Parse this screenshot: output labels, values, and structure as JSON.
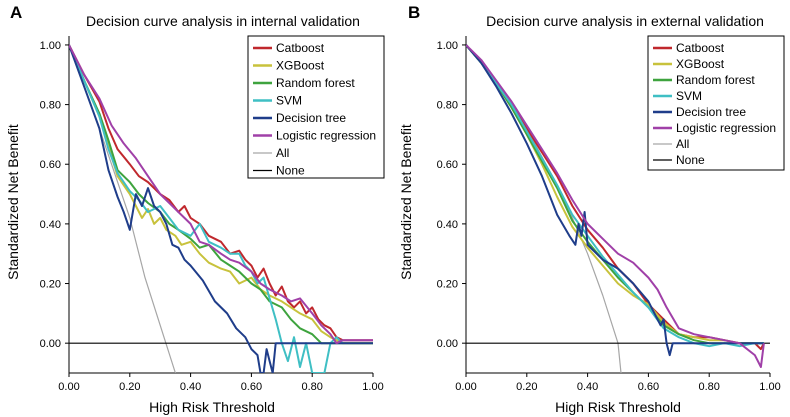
{
  "chart_data": [
    {
      "type": "line",
      "panel": "A",
      "title": "Decision curve analysis in internal validation",
      "xlabel": "High Risk Threshold",
      "ylabel": "Standardized Net Benefit",
      "xlim": [
        0,
        1
      ],
      "ylim": [
        -0.1,
        1.03
      ],
      "xticks": [
        0,
        0.2,
        0.4,
        0.6,
        0.8,
        1.0
      ],
      "xtick_labels": [
        "0.00",
        "0.20",
        "0.40",
        "0.60",
        "0.80",
        "1.00"
      ],
      "yticks": [
        0,
        0.2,
        0.4,
        0.6,
        0.8,
        1.0
      ],
      "ytick_labels": [
        "0.00",
        "0.20",
        "0.40",
        "0.60",
        "0.80",
        "1.00"
      ],
      "legend_position": "top-right",
      "series": [
        {
          "name": "Catboost",
          "color": "#c0282d",
          "x": [
            0,
            0.05,
            0.1,
            0.13,
            0.16,
            0.2,
            0.23,
            0.26,
            0.3,
            0.33,
            0.36,
            0.38,
            0.4,
            0.43,
            0.46,
            0.5,
            0.53,
            0.56,
            0.58,
            0.6,
            0.62,
            0.64,
            0.66,
            0.68,
            0.7,
            0.72,
            0.74,
            0.76,
            0.78,
            0.8,
            0.82,
            0.84,
            0.86,
            0.88,
            0.9,
            0.92,
            0.95,
            1.0
          ],
          "y": [
            1.0,
            0.9,
            0.81,
            0.72,
            0.65,
            0.6,
            0.56,
            0.54,
            0.5,
            0.48,
            0.44,
            0.46,
            0.42,
            0.4,
            0.36,
            0.34,
            0.3,
            0.31,
            0.28,
            0.26,
            0.22,
            0.25,
            0.2,
            0.16,
            0.19,
            0.14,
            0.12,
            0.14,
            0.1,
            0.12,
            0.08,
            0.06,
            0.05,
            0.02,
            0.01,
            0.01,
            0.01,
            0.01
          ]
        },
        {
          "name": "XGBoost",
          "color": "#c8c23c",
          "x": [
            0,
            0.05,
            0.1,
            0.13,
            0.16,
            0.2,
            0.22,
            0.24,
            0.26,
            0.28,
            0.3,
            0.32,
            0.35,
            0.37,
            0.4,
            0.43,
            0.46,
            0.5,
            0.53,
            0.56,
            0.6,
            0.63,
            0.66,
            0.7,
            0.73,
            0.76,
            0.8,
            0.83,
            0.86,
            0.9,
            0.95,
            1.0
          ],
          "y": [
            1.0,
            0.88,
            0.76,
            0.66,
            0.56,
            0.5,
            0.46,
            0.42,
            0.45,
            0.4,
            0.42,
            0.38,
            0.36,
            0.33,
            0.34,
            0.3,
            0.27,
            0.25,
            0.24,
            0.2,
            0.22,
            0.18,
            0.16,
            0.14,
            0.12,
            0.1,
            0.08,
            0.04,
            0.02,
            0.0,
            0.0,
            0.0
          ]
        },
        {
          "name": "Random forest",
          "color": "#3ea33e",
          "x": [
            0,
            0.05,
            0.1,
            0.13,
            0.16,
            0.2,
            0.23,
            0.26,
            0.3,
            0.33,
            0.36,
            0.4,
            0.43,
            0.46,
            0.5,
            0.53,
            0.56,
            0.6,
            0.63,
            0.66,
            0.7,
            0.73,
            0.76,
            0.8,
            0.83,
            0.86,
            0.9,
            0.95,
            1.0
          ],
          "y": [
            1.0,
            0.88,
            0.77,
            0.68,
            0.58,
            0.54,
            0.5,
            0.47,
            0.44,
            0.4,
            0.38,
            0.35,
            0.32,
            0.33,
            0.28,
            0.26,
            0.24,
            0.2,
            0.18,
            0.14,
            0.12,
            0.08,
            0.05,
            0.03,
            0.0,
            0.0,
            0.0,
            0.0,
            0.0
          ]
        },
        {
          "name": "SVM",
          "color": "#3fbfc4",
          "x": [
            0,
            0.05,
            0.1,
            0.13,
            0.16,
            0.2,
            0.23,
            0.26,
            0.3,
            0.33,
            0.36,
            0.4,
            0.43,
            0.46,
            0.5,
            0.53,
            0.56,
            0.58,
            0.6,
            0.62,
            0.64,
            0.66,
            0.68,
            0.7,
            0.72,
            0.74,
            0.76,
            0.78,
            0.8,
            0.82,
            0.84,
            0.86,
            0.88,
            0.9
          ],
          "y": [
            1.0,
            0.88,
            0.76,
            0.65,
            0.57,
            0.51,
            0.48,
            0.44,
            0.46,
            0.42,
            0.38,
            0.36,
            0.4,
            0.34,
            0.32,
            0.3,
            0.3,
            0.26,
            0.24,
            0.2,
            0.22,
            0.15,
            0.08,
            0.0,
            -0.06,
            0.02,
            -0.08,
            0.0,
            -0.1,
            -0.1,
            -0.1,
            0.0,
            0.02,
            0.0
          ]
        },
        {
          "name": "Decision tree",
          "color": "#1f3d8a",
          "x": [
            0,
            0.05,
            0.1,
            0.13,
            0.16,
            0.18,
            0.2,
            0.22,
            0.24,
            0.26,
            0.28,
            0.3,
            0.32,
            0.34,
            0.36,
            0.38,
            0.4,
            0.44,
            0.48,
            0.52,
            0.55,
            0.58,
            0.6,
            0.62,
            0.63,
            0.64,
            0.65,
            0.66,
            0.67,
            0.68,
            0.7,
            0.8,
            0.9,
            1.0
          ],
          "y": [
            1.0,
            0.86,
            0.72,
            0.58,
            0.49,
            0.44,
            0.38,
            0.5,
            0.46,
            0.52,
            0.46,
            0.44,
            0.4,
            0.33,
            0.32,
            0.28,
            0.26,
            0.21,
            0.14,
            0.1,
            0.05,
            0.02,
            -0.02,
            -0.04,
            -0.1,
            -0.1,
            -0.02,
            -0.06,
            -0.1,
            0.0,
            0.0,
            0.0,
            0.0,
            0.0
          ]
        },
        {
          "name": "Logistic regression",
          "color": "#a040a8",
          "x": [
            0,
            0.05,
            0.1,
            0.14,
            0.18,
            0.22,
            0.26,
            0.3,
            0.33,
            0.36,
            0.4,
            0.43,
            0.46,
            0.5,
            0.53,
            0.56,
            0.6,
            0.63,
            0.66,
            0.7,
            0.73,
            0.76,
            0.8,
            0.83,
            0.86,
            0.88,
            0.9,
            0.95,
            1.0
          ],
          "y": [
            1.0,
            0.9,
            0.82,
            0.73,
            0.67,
            0.62,
            0.56,
            0.5,
            0.47,
            0.44,
            0.4,
            0.34,
            0.33,
            0.3,
            0.28,
            0.27,
            0.24,
            0.2,
            0.18,
            0.16,
            0.14,
            0.15,
            0.1,
            0.06,
            0.03,
            0.0,
            0.01,
            0.01,
            0.01
          ]
        },
        {
          "name": "All",
          "color": "#a6a6a6",
          "x": [
            0,
            0.05,
            0.1,
            0.15,
            0.2,
            0.25,
            0.3,
            0.35
          ],
          "y": [
            1.0,
            0.86,
            0.72,
            0.57,
            0.42,
            0.22,
            0.06,
            -0.1
          ]
        },
        {
          "name": "None",
          "color": "#000000",
          "x": [
            0,
            1.0
          ],
          "y": [
            0,
            0
          ]
        }
      ]
    },
    {
      "type": "line",
      "panel": "B",
      "title": "Decision curve analysis in external validation",
      "xlabel": "High Risk Threshold",
      "ylabel": "Standardized Net Benefit",
      "xlim": [
        0,
        1
      ],
      "ylim": [
        -0.1,
        1.03
      ],
      "xticks": [
        0,
        0.2,
        0.4,
        0.6,
        0.8,
        1.0
      ],
      "xtick_labels": [
        "0.00",
        "0.20",
        "0.40",
        "0.60",
        "0.80",
        "1.00"
      ],
      "yticks": [
        0,
        0.2,
        0.4,
        0.6,
        0.8,
        1.0
      ],
      "ytick_labels": [
        "0.00",
        "0.20",
        "0.40",
        "0.60",
        "0.80",
        "1.00"
      ],
      "legend_position": "top-right",
      "series": [
        {
          "name": "Catboost",
          "color": "#c0282d",
          "x": [
            0,
            0.05,
            0.1,
            0.15,
            0.2,
            0.25,
            0.3,
            0.35,
            0.4,
            0.45,
            0.5,
            0.55,
            0.6,
            0.65,
            0.7,
            0.75,
            0.8,
            0.85,
            0.9,
            0.95,
            0.97,
            0.98
          ],
          "y": [
            1.0,
            0.94,
            0.87,
            0.8,
            0.72,
            0.64,
            0.56,
            0.46,
            0.38,
            0.32,
            0.25,
            0.2,
            0.13,
            0.08,
            0.03,
            0.02,
            0.02,
            0.01,
            0.0,
            0.0,
            -0.02,
            0.0
          ]
        },
        {
          "name": "XGBoost",
          "color": "#c8c23c",
          "x": [
            0,
            0.05,
            0.1,
            0.15,
            0.2,
            0.25,
            0.3,
            0.35,
            0.4,
            0.45,
            0.5,
            0.55,
            0.6,
            0.65,
            0.7,
            0.75,
            0.8,
            0.85,
            0.9,
            0.95,
            0.98
          ],
          "y": [
            1.0,
            0.94,
            0.87,
            0.79,
            0.7,
            0.6,
            0.49,
            0.39,
            0.32,
            0.26,
            0.2,
            0.16,
            0.13,
            0.07,
            0.03,
            0.02,
            0.01,
            0.01,
            0.0,
            0.0,
            0.0
          ]
        },
        {
          "name": "Random forest",
          "color": "#3ea33e",
          "x": [
            0,
            0.05,
            0.1,
            0.15,
            0.2,
            0.25,
            0.3,
            0.35,
            0.4,
            0.45,
            0.5,
            0.55,
            0.6,
            0.65,
            0.7,
            0.75,
            0.8,
            0.85,
            0.9,
            0.95,
            0.98
          ],
          "y": [
            1.0,
            0.94,
            0.87,
            0.79,
            0.7,
            0.61,
            0.52,
            0.41,
            0.34,
            0.28,
            0.22,
            0.17,
            0.12,
            0.06,
            0.03,
            0.01,
            0.0,
            0.0,
            0.0,
            0.0,
            0.0
          ]
        },
        {
          "name": "SVM",
          "color": "#3fbfc4",
          "x": [
            0,
            0.05,
            0.1,
            0.15,
            0.2,
            0.25,
            0.3,
            0.35,
            0.4,
            0.45,
            0.5,
            0.55,
            0.6,
            0.65,
            0.7,
            0.75,
            0.8,
            0.85,
            0.9,
            0.95,
            0.98
          ],
          "y": [
            1.0,
            0.94,
            0.87,
            0.8,
            0.71,
            0.62,
            0.53,
            0.43,
            0.36,
            0.29,
            0.23,
            0.17,
            0.12,
            0.05,
            0.02,
            0.0,
            -0.01,
            0.0,
            -0.01,
            0.0,
            0.0
          ]
        },
        {
          "name": "Decision tree",
          "color": "#1f3d8a",
          "x": [
            0,
            0.05,
            0.1,
            0.15,
            0.2,
            0.25,
            0.3,
            0.34,
            0.36,
            0.37,
            0.38,
            0.39,
            0.4,
            0.45,
            0.5,
            0.55,
            0.6,
            0.62,
            0.64,
            0.65,
            0.66,
            0.67,
            0.68,
            0.7,
            0.8,
            0.9,
            0.98
          ],
          "y": [
            1.0,
            0.94,
            0.86,
            0.77,
            0.67,
            0.56,
            0.43,
            0.36,
            0.33,
            0.4,
            0.36,
            0.44,
            0.33,
            0.28,
            0.25,
            0.2,
            0.14,
            0.1,
            0.06,
            0.08,
            0.0,
            -0.04,
            0.0,
            0.0,
            0.0,
            0.0,
            0.0
          ]
        },
        {
          "name": "Logistic regression",
          "color": "#a040a8",
          "x": [
            0,
            0.05,
            0.1,
            0.15,
            0.2,
            0.25,
            0.3,
            0.35,
            0.4,
            0.45,
            0.5,
            0.55,
            0.6,
            0.63,
            0.66,
            0.7,
            0.75,
            0.8,
            0.85,
            0.9,
            0.95,
            0.97,
            0.98
          ],
          "y": [
            1.0,
            0.95,
            0.88,
            0.81,
            0.73,
            0.65,
            0.57,
            0.48,
            0.4,
            0.35,
            0.3,
            0.27,
            0.22,
            0.18,
            0.12,
            0.05,
            0.03,
            0.02,
            0.01,
            0.0,
            -0.04,
            -0.08,
            0.0
          ]
        },
        {
          "name": "All",
          "color": "#a6a6a6",
          "x": [
            0,
            0.1,
            0.2,
            0.3,
            0.35,
            0.4,
            0.45,
            0.5,
            0.51
          ],
          "y": [
            1.0,
            0.88,
            0.72,
            0.53,
            0.42,
            0.3,
            0.16,
            0.0,
            -0.1
          ]
        },
        {
          "name": "None",
          "color": "#000000",
          "x": [
            0,
            1.0
          ],
          "y": [
            0,
            0
          ]
        }
      ]
    }
  ]
}
